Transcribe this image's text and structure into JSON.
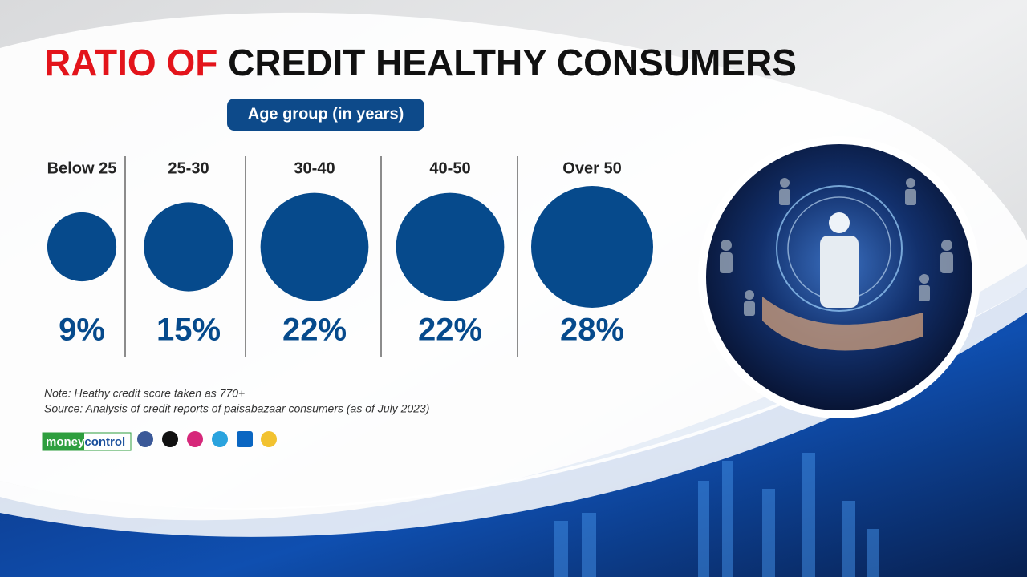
{
  "chart_data": {
    "type": "bubble",
    "title": [
      "RATIO OF",
      "CREDIT HEALTHY CONSUMERS"
    ],
    "subtitle": "Age group (in years)",
    "categories": [
      "Below 25",
      "25-30",
      "30-40",
      "40-50",
      "Over 50"
    ],
    "values": [
      9,
      15,
      22,
      22,
      28
    ],
    "value_labels": [
      "9%",
      "15%",
      "22%",
      "22%",
      "28%"
    ],
    "color": "#064a8c",
    "notes": [
      "Note: Heathy credit score taken as 770+",
      "Source: Analysis of credit reports of paisabazaar consumers (as of July 2023)"
    ],
    "logo": [
      "money",
      "control"
    ]
  }
}
